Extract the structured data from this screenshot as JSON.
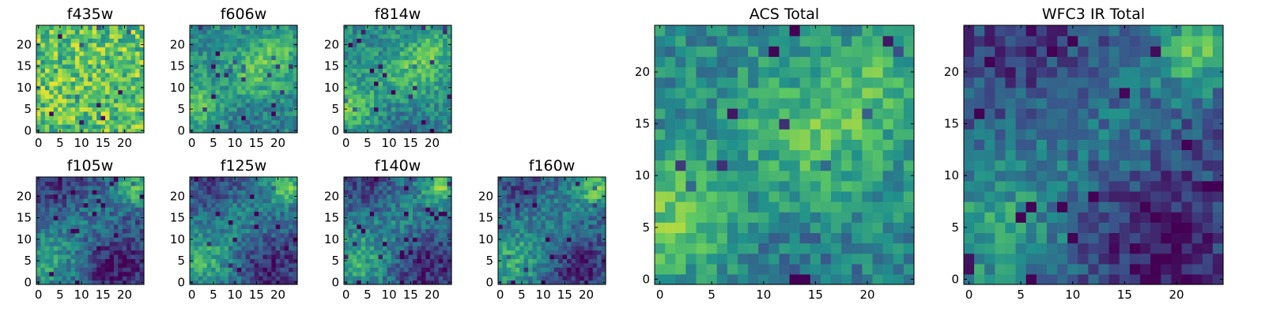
{
  "chart_data": [
    {
      "type": "heatmap",
      "title": "f435w",
      "x_ticks": [
        "0",
        "5",
        "10",
        "15",
        "20"
      ],
      "y_ticks": [
        "0",
        "5",
        "10",
        "15",
        "20"
      ],
      "xlim": [
        0,
        24
      ],
      "ylim": [
        0,
        24
      ],
      "grid_size": [
        25,
        25
      ],
      "colormap": "viridis",
      "pattern": "noise",
      "seed": 11,
      "mean_level": 0.72
    },
    {
      "type": "heatmap",
      "title": "f606w",
      "x_ticks": [
        "0",
        "5",
        "10",
        "15",
        "20"
      ],
      "y_ticks": [
        "0",
        "5",
        "10",
        "15",
        "20"
      ],
      "xlim": [
        0,
        24
      ],
      "ylim": [
        0,
        24
      ],
      "grid_size": [
        25,
        25
      ],
      "colormap": "viridis",
      "pattern": "acs",
      "seed": 23,
      "mean_level": 0.6
    },
    {
      "type": "heatmap",
      "title": "f814w",
      "x_ticks": [
        "0",
        "5",
        "10",
        "15",
        "20"
      ],
      "y_ticks": [
        "0",
        "5",
        "10",
        "15",
        "20"
      ],
      "xlim": [
        0,
        24
      ],
      "ylim": [
        0,
        24
      ],
      "grid_size": [
        25,
        25
      ],
      "colormap": "viridis",
      "pattern": "acs",
      "seed": 37,
      "mean_level": 0.6
    },
    {
      "type": "heatmap",
      "title": "f105w",
      "x_ticks": [
        "0",
        "5",
        "10",
        "15",
        "20"
      ],
      "y_ticks": [
        "0",
        "5",
        "10",
        "15",
        "20"
      ],
      "xlim": [
        0,
        24
      ],
      "ylim": [
        0,
        24
      ],
      "grid_size": [
        25,
        25
      ],
      "colormap": "viridis",
      "pattern": "ir",
      "seed": 41,
      "mean_level": 0.5
    },
    {
      "type": "heatmap",
      "title": "f125w",
      "x_ticks": [
        "0",
        "5",
        "10",
        "15",
        "20"
      ],
      "y_ticks": [
        "0",
        "5",
        "10",
        "15",
        "20"
      ],
      "xlim": [
        0,
        24
      ],
      "ylim": [
        0,
        24
      ],
      "grid_size": [
        25,
        25
      ],
      "colormap": "viridis",
      "pattern": "ir",
      "seed": 53,
      "mean_level": 0.55
    },
    {
      "type": "heatmap",
      "title": "f140w",
      "x_ticks": [
        "0",
        "5",
        "10",
        "15",
        "20"
      ],
      "y_ticks": [
        "0",
        "5",
        "10",
        "15",
        "20"
      ],
      "xlim": [
        0,
        24
      ],
      "ylim": [
        0,
        24
      ],
      "grid_size": [
        25,
        25
      ],
      "colormap": "viridis",
      "pattern": "ir",
      "seed": 67,
      "mean_level": 0.55
    },
    {
      "type": "heatmap",
      "title": "f160w",
      "x_ticks": [
        "0",
        "5",
        "10",
        "15",
        "20"
      ],
      "y_ticks": [
        "0",
        "5",
        "10",
        "15",
        "20"
      ],
      "xlim": [
        0,
        24
      ],
      "ylim": [
        0,
        24
      ],
      "grid_size": [
        25,
        25
      ],
      "colormap": "viridis",
      "pattern": "ir",
      "seed": 79,
      "mean_level": 0.55
    },
    {
      "type": "heatmap",
      "title": "ACS Total",
      "x_ticks": [
        "0",
        "5",
        "10",
        "15",
        "20"
      ],
      "y_ticks": [
        "0",
        "5",
        "10",
        "15",
        "20"
      ],
      "xlim": [
        0,
        24
      ],
      "ylim": [
        0,
        24
      ],
      "grid_size": [
        25,
        25
      ],
      "colormap": "viridis",
      "pattern": "acs",
      "seed": 97,
      "mean_level": 0.6
    },
    {
      "type": "heatmap",
      "title": "WFC3 IR Total",
      "x_ticks": [
        "0",
        "5",
        "10",
        "15",
        "20"
      ],
      "y_ticks": [
        "0",
        "5",
        "10",
        "15",
        "20"
      ],
      "xlim": [
        0,
        24
      ],
      "ylim": [
        0,
        24
      ],
      "grid_size": [
        25,
        25
      ],
      "colormap": "viridis",
      "pattern": "ir",
      "seed": 101,
      "mean_level": 0.5
    }
  ],
  "colors": {
    "colormap_low": "#440154",
    "colormap_mid": "#21918c",
    "colormap_high": "#fde725",
    "axis": "#000000",
    "background": "#ffffff"
  }
}
